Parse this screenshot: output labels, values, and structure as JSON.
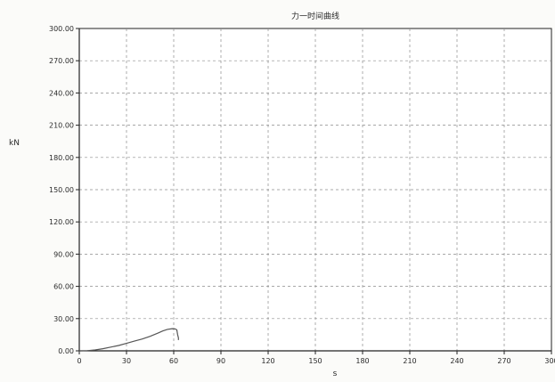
{
  "chart_data": {
    "type": "line",
    "title": "力一时间曲线",
    "xlabel": "s",
    "ylabel": "kN",
    "xlim": [
      0,
      300
    ],
    "ylim": [
      0,
      300
    ],
    "x_ticks": [
      0,
      30,
      60,
      90,
      120,
      150,
      180,
      210,
      240,
      270,
      300
    ],
    "y_ticks": [
      0,
      30,
      60,
      90,
      120,
      150,
      180,
      210,
      240,
      270,
      300
    ],
    "x_tick_labels": [
      "0",
      "30",
      "60",
      "90",
      "120",
      "150",
      "180",
      "210",
      "240",
      "270",
      "300"
    ],
    "y_tick_labels": [
      "0.00",
      "30.00",
      "60.00",
      "90.00",
      "120.00",
      "150.00",
      "180.00",
      "210.00",
      "240.00",
      "270.00",
      "300.00"
    ],
    "grid": true,
    "series": [
      {
        "x": [
          0,
          5,
          10,
          15,
          20,
          25,
          30,
          35,
          40,
          45,
          50,
          53,
          56,
          59,
          61,
          62,
          62.5,
          63,
          63
        ],
        "y": [
          0,
          0.2,
          0.8,
          2,
          3.5,
          5,
          7,
          9,
          11,
          13.5,
          16.5,
          18.5,
          20,
          20.6,
          20.4,
          19.5,
          15,
          12,
          10
        ]
      }
    ],
    "colors": {
      "line": "#555555",
      "grid": "#8c8c8c",
      "axis": "#222222",
      "background": "#ffffff"
    }
  }
}
